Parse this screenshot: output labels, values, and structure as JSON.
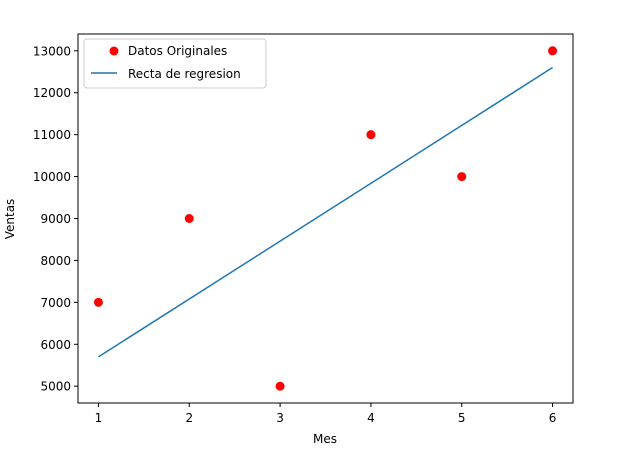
{
  "chart_data": {
    "type": "scatter",
    "xlabel": "Mes",
    "ylabel": "Ventas",
    "xlim": [
      0.775,
      6.225
    ],
    "ylim": [
      4600,
      13400
    ],
    "xticks": [
      1,
      2,
      3,
      4,
      5,
      6
    ],
    "yticks": [
      5000,
      6000,
      7000,
      8000,
      9000,
      10000,
      11000,
      12000,
      13000
    ],
    "grid": false,
    "legend_position": "upper-left",
    "series": [
      {
        "name": "Datos Originales",
        "kind": "scatter",
        "color": "#ff0000",
        "x": [
          1,
          2,
          3,
          4,
          5,
          6
        ],
        "y": [
          7000,
          9000,
          5000,
          11000,
          10000,
          13000
        ]
      },
      {
        "name": "Recta de regresion",
        "kind": "line",
        "color": "#1f77b4",
        "x": [
          1,
          6
        ],
        "y": [
          5700,
          12600
        ]
      }
    ]
  }
}
